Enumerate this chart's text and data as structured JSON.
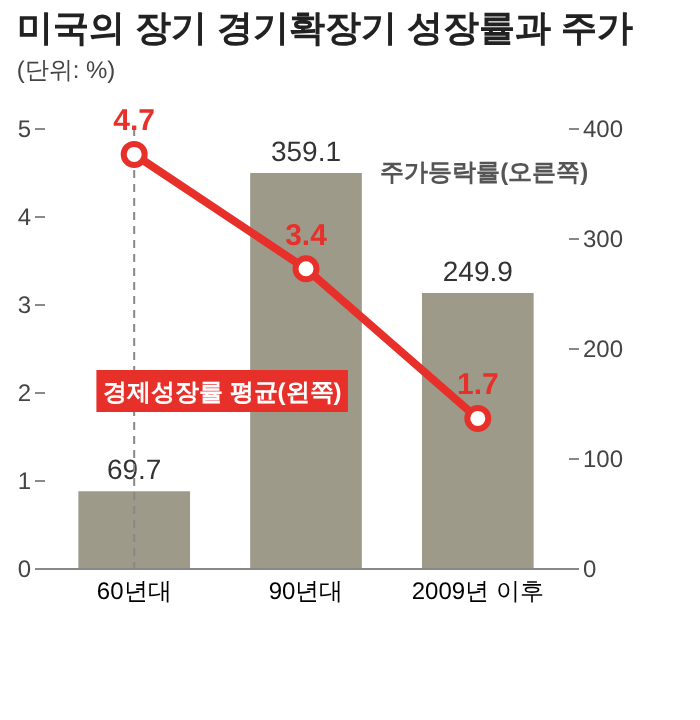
{
  "chart_data": {
    "type": "bar",
    "title": "미국의 장기 경기확장기 성장률과 주가",
    "subtitle": "(단위: %)",
    "categories": [
      "60년대",
      "90년대",
      "2009년 이후"
    ],
    "series": [
      {
        "name": "주가등락률(오른쪽)",
        "color": "#9d9a89",
        "axis": "y2",
        "values": [
          69.7,
          359.1,
          249.9
        ]
      },
      {
        "name": "경제성장률 평균(왼쪽)",
        "type": "line",
        "color": "#e8302a",
        "values": [
          4.7,
          3.4,
          1.7
        ]
      }
    ],
    "ylim": [
      0,
      5
    ],
    "yticks": [
      0,
      1,
      2,
      3,
      4,
      5
    ],
    "y2lim": [
      0,
      400
    ],
    "y2ticks": [
      0,
      100,
      200,
      300,
      400
    ],
    "data_labels": true,
    "marker": "circle",
    "ref_lines": [
      {
        "axis": "x",
        "value": "60년대",
        "color": "#888888",
        "line_style": "dashed"
      }
    ]
  }
}
